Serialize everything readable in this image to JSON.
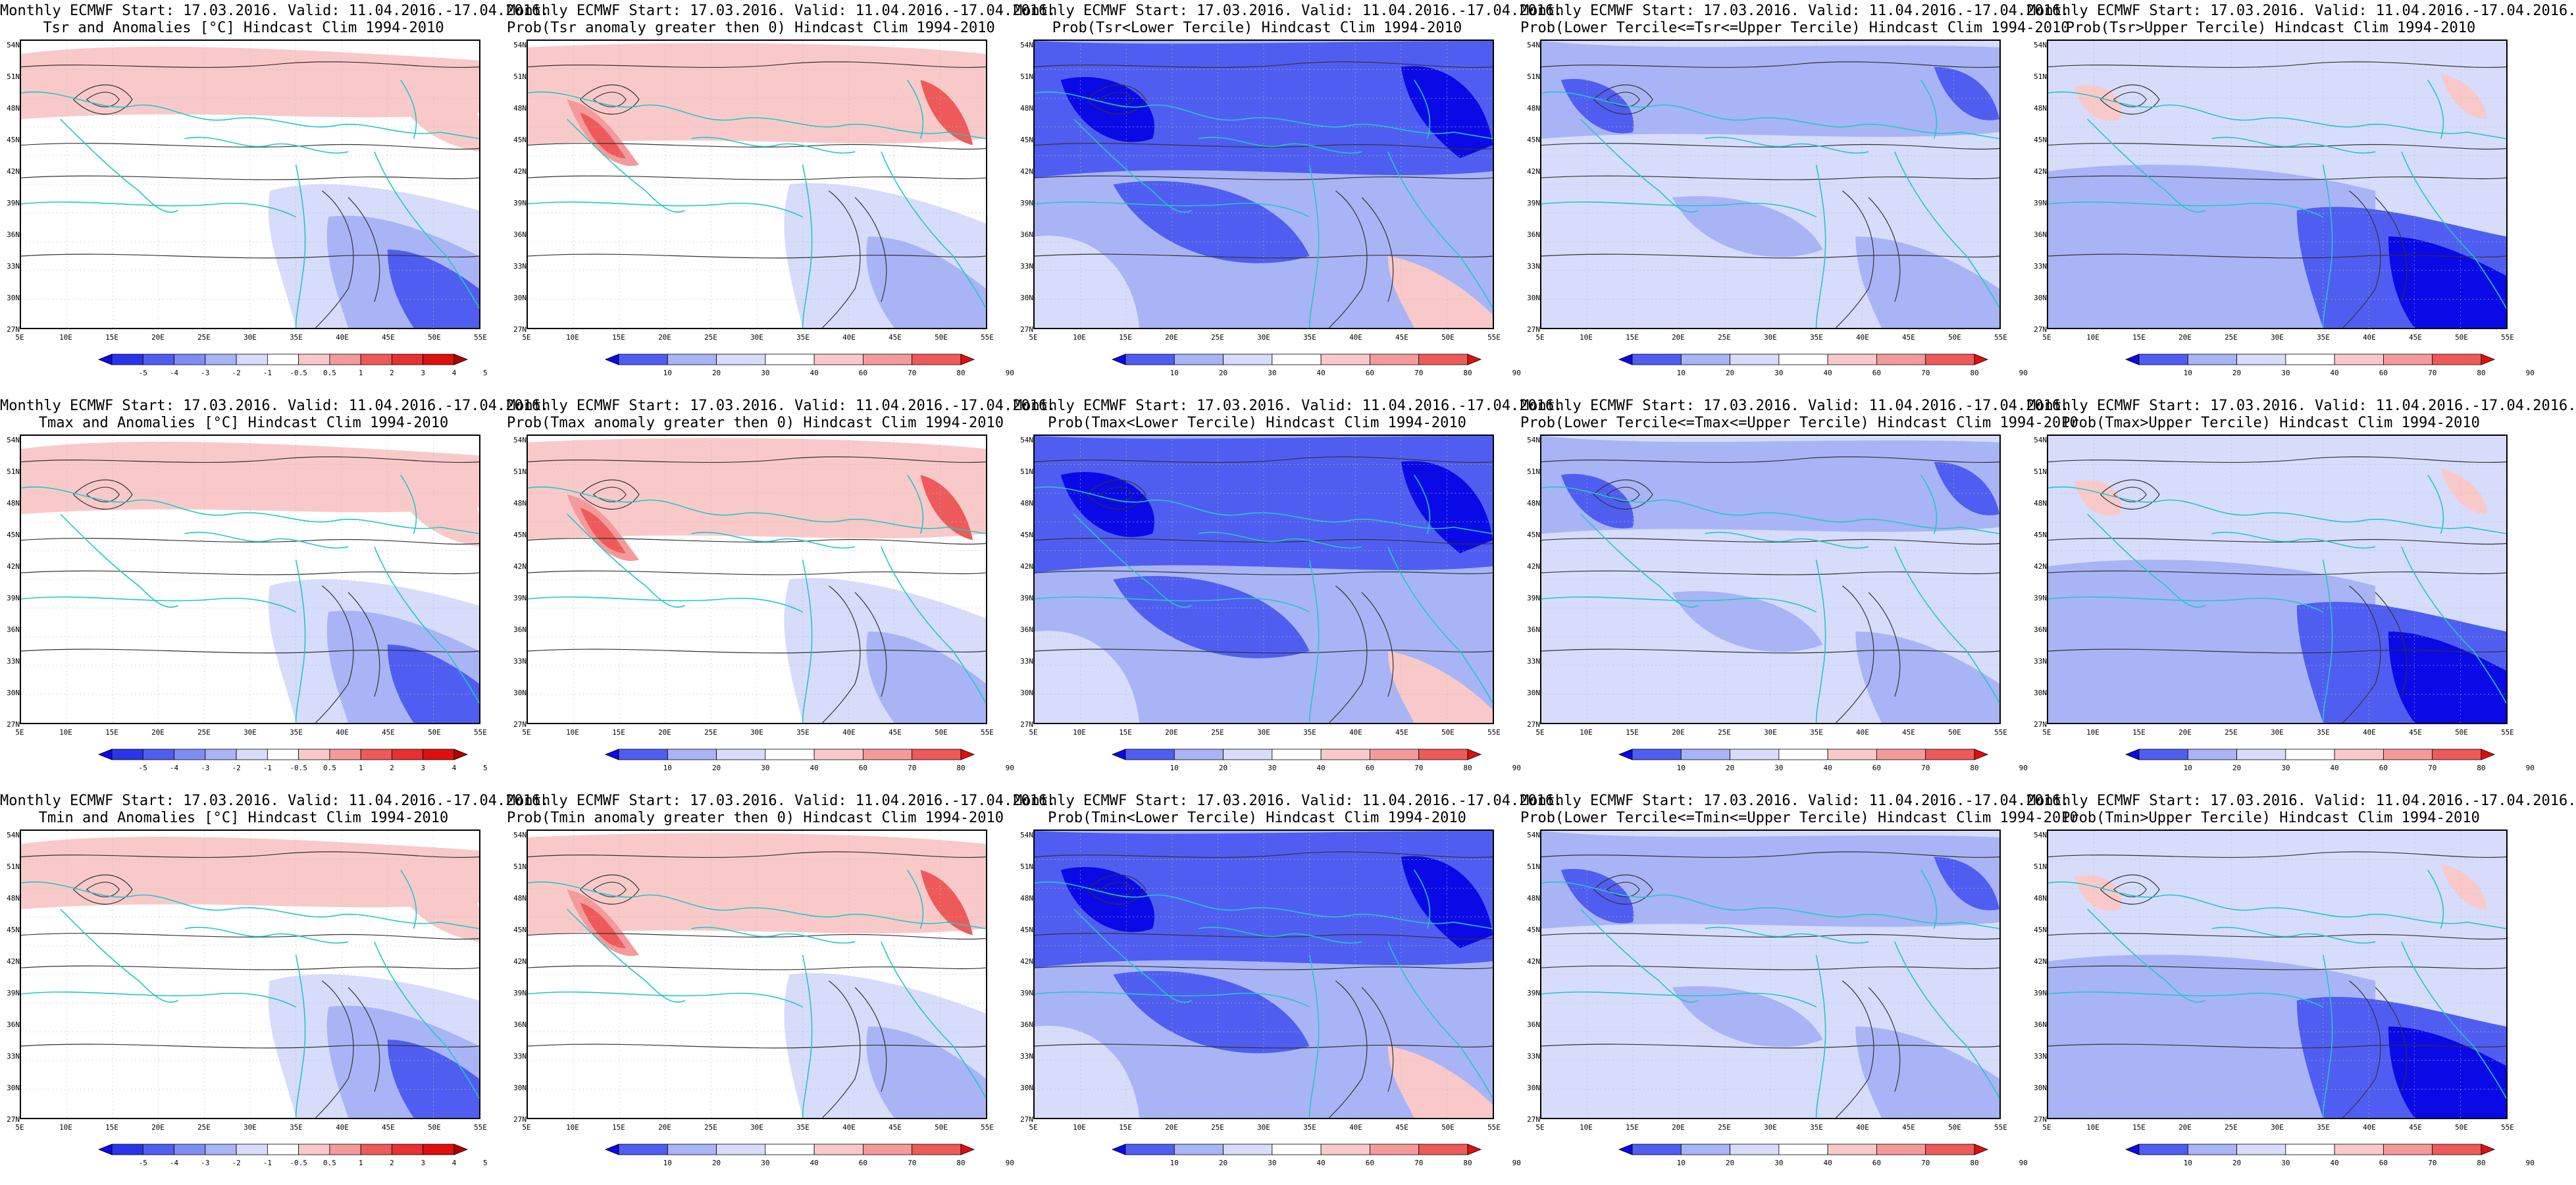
{
  "lat_labels": [
    "54N",
    "51N",
    "48N",
    "45N",
    "42N",
    "39N",
    "36N",
    "33N",
    "30N",
    "27N"
  ],
  "lon_labels": [
    "5E",
    "10E",
    "15E",
    "20E",
    "25E",
    "30E",
    "35E",
    "40E",
    "45E",
    "50E",
    "55E"
  ],
  "colors": {
    "blue_dark": "#0a0ae6",
    "blue_mid": "#4f5ef0",
    "blue_light": "#a8b4f5",
    "blue_pale": "#d6dcfa",
    "red_pale": "#f9c9c9",
    "red_light": "#f49a9a",
    "red_mid": "#ee5a5a",
    "red_dark": "#e00f0f",
    "coast": "#20c8c8",
    "contour": "#333333"
  },
  "panels": [
    {
      "id": "tsr-anom",
      "title1": "Monthly ECMWF Start: 17.03.2016. Valid: 11.04.2016.-17.04.2016.",
      "title2": "Tsr and Anomalies [°C] Hindcast Clim 1994-2010",
      "scale": "anom",
      "pattern": "anom",
      "bar": [
        "-5",
        "-4",
        "-3",
        "-2",
        "-1",
        "-0.5",
        "0.5",
        "1",
        "2",
        "3",
        "4",
        "5"
      ]
    },
    {
      "id": "tsr-pos",
      "title1": "Monthly ECMWF Start: 17.03.2016. Valid: 11.04.2016.-17.04.2016.",
      "title2": "Prob(Tsr anomaly greater then 0) Hindcast Clim 1994-2010",
      "scale": "prob",
      "pattern": "warm",
      "bar": [
        "10",
        "20",
        "30",
        "40",
        "60",
        "70",
        "80",
        "90"
      ]
    },
    {
      "id": "tsr-lower",
      "title1": "Monthly ECMWF Start: 17.03.2016. Valid: 11.04.2016.-17.04.2016.",
      "title2": "Prob(Tsr<Lower Tercile) Hindcast Clim 1994-2010",
      "scale": "prob",
      "pattern": "blue",
      "bar": [
        "10",
        "20",
        "30",
        "40",
        "60",
        "70",
        "80",
        "90"
      ]
    },
    {
      "id": "tsr-middle",
      "title1": "Monthly ECMWF Start: 17.03.2016. Valid: 11.04.2016.-17.04.2016.",
      "title2": "Prob(Lower Tercile<=Tsr<=Upper Tercile) Hindcast Clim 1994-2010",
      "scale": "prob",
      "pattern": "mixed",
      "bar": [
        "10",
        "20",
        "30",
        "40",
        "60",
        "70",
        "80",
        "90"
      ]
    },
    {
      "id": "tsr-upper",
      "title1": "Monthly ECMWF Start: 17.03.2016. Valid: 11.04.2016.-17.04.2016.",
      "title2": "Prob(Tsr>Upper Tercile) Hindcast Clim 1994-2010",
      "scale": "prob",
      "pattern": "upper",
      "bar": [
        "10",
        "20",
        "30",
        "40",
        "60",
        "70",
        "80",
        "90"
      ]
    },
    {
      "id": "tmax-anom",
      "title1": "Monthly ECMWF Start: 17.03.2016. Valid: 11.04.2016.-17.04.2016.",
      "title2": "Tmax and Anomalies [°C] Hindcast Clim 1994-2010",
      "scale": "anom",
      "pattern": "anom",
      "bar": [
        "-5",
        "-4",
        "-3",
        "-2",
        "-1",
        "-0.5",
        "0.5",
        "1",
        "2",
        "3",
        "4",
        "5"
      ]
    },
    {
      "id": "tmax-pos",
      "title1": "Monthly ECMWF Start: 17.03.2016. Valid: 11.04.2016.-17.04.2016.",
      "title2": "Prob(Tmax anomaly greater then 0) Hindcast Clim 1994-2010",
      "scale": "prob",
      "pattern": "warm",
      "bar": [
        "10",
        "20",
        "30",
        "40",
        "60",
        "70",
        "80",
        "90"
      ]
    },
    {
      "id": "tmax-lower",
      "title1": "Monthly ECMWF Start: 17.03.2016. Valid: 11.04.2016.-17.04.2016.",
      "title2": "Prob(Tmax<Lower Tercile) Hindcast Clim 1994-2010",
      "scale": "prob",
      "pattern": "blue",
      "bar": [
        "10",
        "20",
        "30",
        "40",
        "60",
        "70",
        "80",
        "90"
      ]
    },
    {
      "id": "tmax-middle",
      "title1": "Monthly ECMWF Start: 17.03.2016. Valid: 11.04.2016.-17.04.2016.",
      "title2": "Prob(Lower Tercile<=Tmax<=Upper Tercile) Hindcast Clim 1994-2010",
      "scale": "prob",
      "pattern": "mixed",
      "bar": [
        "10",
        "20",
        "30",
        "40",
        "60",
        "70",
        "80",
        "90"
      ]
    },
    {
      "id": "tmax-upper",
      "title1": "Monthly ECMWF Start: 17.03.2016. Valid: 11.04.2016.-17.04.2016.",
      "title2": "Prob(Tmax>Upper Tercile) Hindcast Clim 1994-2010",
      "scale": "prob",
      "pattern": "upper",
      "bar": [
        "10",
        "20",
        "30",
        "40",
        "60",
        "70",
        "80",
        "90"
      ]
    },
    {
      "id": "tmin-anom",
      "title1": "Monthly ECMWF Start: 17.03.2016. Valid: 11.04.2016.-17.04.2016.",
      "title2": "Tmin and Anomalies [°C] Hindcast Clim 1994-2010",
      "scale": "anom",
      "pattern": "anom",
      "bar": [
        "-5",
        "-4",
        "-3",
        "-2",
        "-1",
        "-0.5",
        "0.5",
        "1",
        "2",
        "3",
        "4",
        "5"
      ]
    },
    {
      "id": "tmin-pos",
      "title1": "Monthly ECMWF Start: 17.03.2016. Valid: 11.04.2016.-17.04.2016.",
      "title2": "Prob(Tmin anomaly greater then 0) Hindcast Clim 1994-2010",
      "scale": "prob",
      "pattern": "warm",
      "bar": [
        "10",
        "20",
        "30",
        "40",
        "60",
        "70",
        "80",
        "90"
      ]
    },
    {
      "id": "tmin-lower",
      "title1": "Monthly ECMWF Start: 17.03.2016. Valid: 11.04.2016.-17.04.2016.",
      "title2": "Prob(Tmin<Lower Tercile) Hindcast Clim 1994-2010",
      "scale": "prob",
      "pattern": "blue",
      "bar": [
        "10",
        "20",
        "30",
        "40",
        "60",
        "70",
        "80",
        "90"
      ]
    },
    {
      "id": "tmin-middle",
      "title1": "Monthly ECMWF Start: 17.03.2016. Valid: 11.04.2016.-17.04.2016.",
      "title2": "Prob(Lower Tercile<=Tmin<=Upper Tercile) Hindcast Clim 1994-2010",
      "scale": "prob",
      "pattern": "mixed",
      "bar": [
        "10",
        "20",
        "30",
        "40",
        "60",
        "70",
        "80",
        "90"
      ]
    },
    {
      "id": "tmin-upper",
      "title1": "Monthly ECMWF Start: 17.03.2016. Valid: 11.04.2016.-17.04.2016.",
      "title2": "Prob(Tmin>Upper Tercile) Hindcast Clim 1994-2010",
      "scale": "prob",
      "pattern": "upper",
      "bar": [
        "10",
        "20",
        "30",
        "40",
        "60",
        "70",
        "80",
        "90"
      ]
    }
  ]
}
